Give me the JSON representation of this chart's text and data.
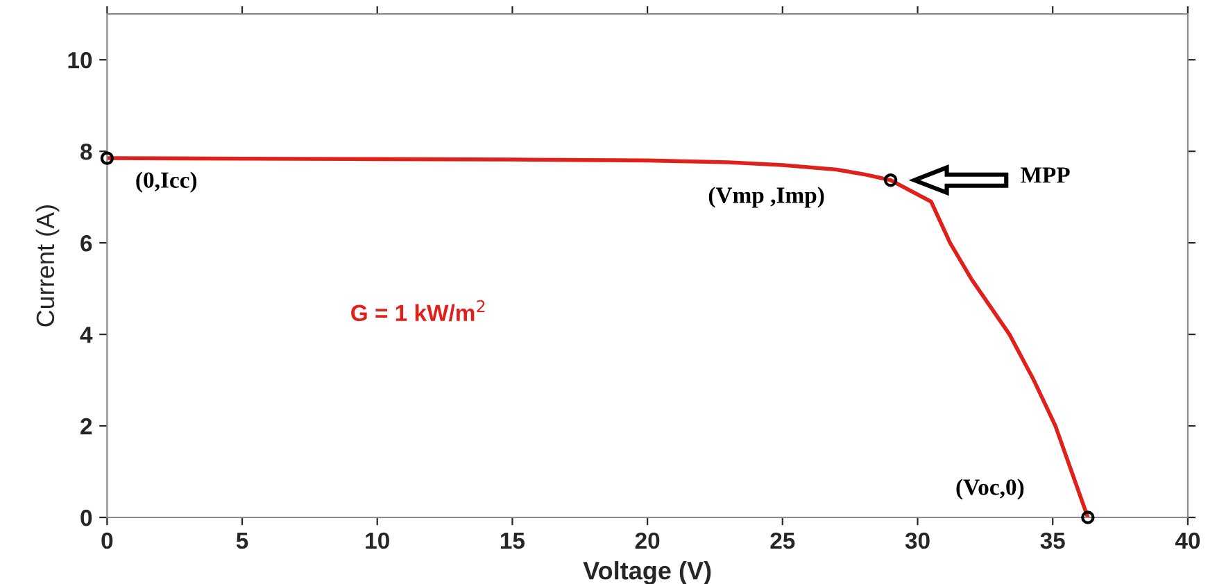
{
  "chart_data": {
    "type": "line",
    "xlabel": "Voltage (V)",
    "ylabel": "Current (A)",
    "series": [
      {
        "color": "#e0201b",
        "x": [
          0,
          5,
          10,
          15,
          20,
          23,
          25,
          27,
          28,
          29,
          30.5,
          31.2,
          32,
          33.4,
          34.3,
          35.1,
          35.7,
          36.3
        ],
        "values": [
          7.85,
          7.84,
          7.83,
          7.82,
          7.8,
          7.76,
          7.7,
          7.6,
          7.5,
          7.37,
          6.9,
          6.0,
          5.2,
          4.0,
          3.0,
          2.0,
          1.0,
          0
        ]
      },
      {
        "type": "scatter",
        "color": "#000000",
        "marker": "circle",
        "x": [
          0,
          29,
          36.3
        ],
        "values": [
          7.85,
          7.37,
          0
        ]
      }
    ],
    "annotations": [
      "(0,Icc)",
      "(Vmp ,Imp)",
      "MPP",
      "(Voc,0)",
      "G = 1 kW/m$^{2}$"
    ],
    "xlim": [
      0,
      40
    ],
    "ylim": [
      0,
      11
    ],
    "xticks": [
      0,
      5,
      10,
      15,
      20,
      25,
      30,
      35,
      40
    ],
    "yticks": [
      0,
      2,
      4,
      6,
      8,
      10
    ],
    "grid": false
  }
}
